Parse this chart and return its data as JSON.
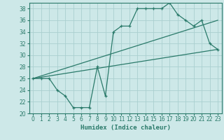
{
  "xlabel": "Humidex (Indice chaleur)",
  "background_color": "#cde8e8",
  "grid_color": "#aacfcf",
  "line_color": "#2a7a6a",
  "xlim": [
    -0.5,
    23.5
  ],
  "ylim": [
    20,
    39
  ],
  "xticks": [
    0,
    1,
    2,
    3,
    4,
    5,
    6,
    7,
    8,
    9,
    10,
    11,
    12,
    13,
    14,
    15,
    16,
    17,
    18,
    19,
    20,
    21,
    22,
    23
  ],
  "yticks": [
    20,
    22,
    24,
    26,
    28,
    30,
    32,
    34,
    36,
    38
  ],
  "curve1_x": [
    0,
    1,
    2,
    3,
    4,
    5,
    6,
    7,
    8,
    9,
    10,
    11,
    12,
    13,
    14,
    15,
    16,
    17,
    18,
    19,
    20,
    21,
    22,
    23
  ],
  "curve1_y": [
    26,
    26,
    26,
    24,
    23,
    21,
    21,
    21,
    28,
    23,
    34,
    35,
    35,
    38,
    38,
    38,
    38,
    39,
    37,
    36,
    35,
    36,
    32,
    31
  ],
  "line1_x": [
    0,
    23
  ],
  "line1_y": [
    26,
    36
  ],
  "line2_x": [
    0,
    23
  ],
  "line2_y": [
    26,
    31
  ]
}
